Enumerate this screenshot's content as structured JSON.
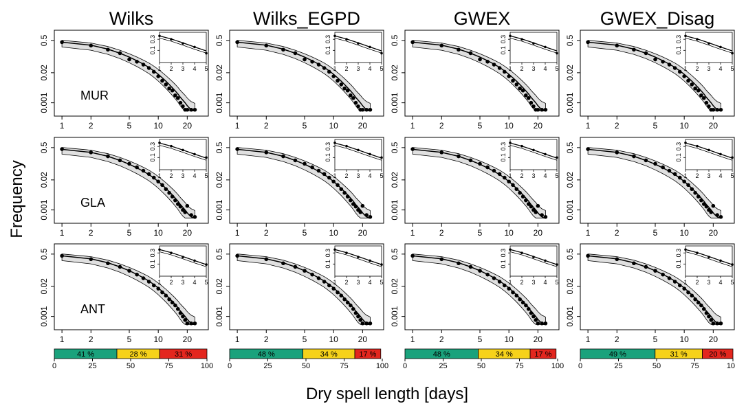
{
  "figure": {
    "ylabel": "Frequency",
    "xlabel": "Dry spell length [days]"
  },
  "chart_data": {
    "type": "line",
    "description_axes": {
      "x_scale": "log",
      "y_scale": "log",
      "x_ticks": [
        1,
        2,
        5,
        10,
        20
      ],
      "y_ticks": [
        0.5,
        0.02,
        0.001
      ],
      "y_tick_labels": [
        "0.5",
        "0.02",
        "0.001"
      ],
      "xlim": [
        0.95,
        30
      ],
      "ylim": [
        0.0004,
        0.8
      ],
      "inset_x_ticks": [
        1,
        2,
        3,
        4,
        5
      ],
      "inset_y_ticks": [
        0.1,
        0.3
      ],
      "inset_y_tick_labels": [
        "0.1",
        "0.3"
      ],
      "inset_xlim": [
        1,
        5
      ],
      "inset_ylim": [
        0.03,
        0.6
      ]
    },
    "models": [
      "Wilks",
      "Wilks_EGPD",
      "GWEX",
      "GWEX_Disag"
    ],
    "stations": [
      "MUR",
      "GLA",
      "ANT"
    ],
    "observed": {
      "MUR": {
        "x": [
          1,
          2,
          3,
          4,
          5,
          6,
          7,
          8,
          9,
          10,
          11,
          12,
          13,
          14,
          15,
          16,
          17,
          18,
          19,
          20,
          22,
          24
        ],
        "y": [
          0.42,
          0.3,
          0.2,
          0.14,
          0.075,
          0.06,
          0.045,
          0.032,
          0.022,
          0.014,
          0.009,
          0.0062,
          0.0042,
          0.0034,
          0.0021,
          0.0016,
          0.001,
          0.0007,
          0.0005,
          0.0005,
          0.0005,
          0.0005
        ]
      },
      "GLA": {
        "x": [
          1,
          2,
          3,
          4,
          5,
          6,
          7,
          8,
          9,
          10,
          11,
          12,
          13,
          14,
          15,
          16,
          17,
          18,
          19,
          20,
          22,
          24
        ],
        "y": [
          0.43,
          0.31,
          0.21,
          0.14,
          0.1,
          0.07,
          0.05,
          0.036,
          0.025,
          0.017,
          0.012,
          0.008,
          0.0055,
          0.0038,
          0.0026,
          0.0018,
          0.0014,
          0.001,
          0.0008,
          0.0015,
          0.0006,
          0.0005
        ]
      },
      "ANT": {
        "x": [
          1,
          2,
          3,
          4,
          5,
          6,
          7,
          8,
          9,
          10,
          11,
          12,
          13,
          14,
          15,
          16,
          17,
          18,
          19,
          20,
          22,
          24
        ],
        "y": [
          0.42,
          0.3,
          0.2,
          0.14,
          0.095,
          0.065,
          0.045,
          0.032,
          0.022,
          0.016,
          0.011,
          0.008,
          0.0055,
          0.004,
          0.003,
          0.0021,
          0.0014,
          0.001,
          0.0007,
          0.0005,
          0.0005,
          0.0005
        ]
      }
    },
    "simulated_median": {
      "x": [
        1,
        2,
        3,
        4,
        5,
        6,
        7,
        8,
        9,
        10,
        11,
        12,
        13,
        14,
        15,
        16,
        17,
        18,
        19,
        20,
        21,
        22,
        23,
        24
      ],
      "y": [
        0.42,
        0.31,
        0.21,
        0.14,
        0.095,
        0.066,
        0.047,
        0.034,
        0.024,
        0.017,
        0.012,
        0.0086,
        0.0062,
        0.0045,
        0.0033,
        0.0024,
        0.0017,
        0.0013,
        0.001,
        0.00075,
        0.0006,
        0.0005,
        0.00045,
        0.0004
      ]
    },
    "percentage_bars": [
      {
        "model": "Wilks",
        "segments": [
          41,
          28,
          31
        ],
        "labels": [
          "41 %",
          "28 %",
          "31 %"
        ]
      },
      {
        "model": "Wilks_EGPD",
        "segments": [
          48,
          34,
          17
        ],
        "labels": [
          "48 %",
          "34 %",
          "17 %"
        ]
      },
      {
        "model": "GWEX",
        "segments": [
          48,
          34,
          17
        ],
        "labels": [
          "48 %",
          "34 %",
          "17 %"
        ]
      },
      {
        "model": "GWEX_Disag",
        "segments": [
          49,
          31,
          20
        ],
        "labels": [
          "49 %",
          "31 %",
          "20 %"
        ]
      }
    ],
    "bar_axis_ticks": [
      0,
      25,
      50,
      75,
      100
    ],
    "bar_colors": [
      "#1aa27c",
      "#f6d21a",
      "#e3261e"
    ],
    "band_color": "#e0e0e0"
  }
}
